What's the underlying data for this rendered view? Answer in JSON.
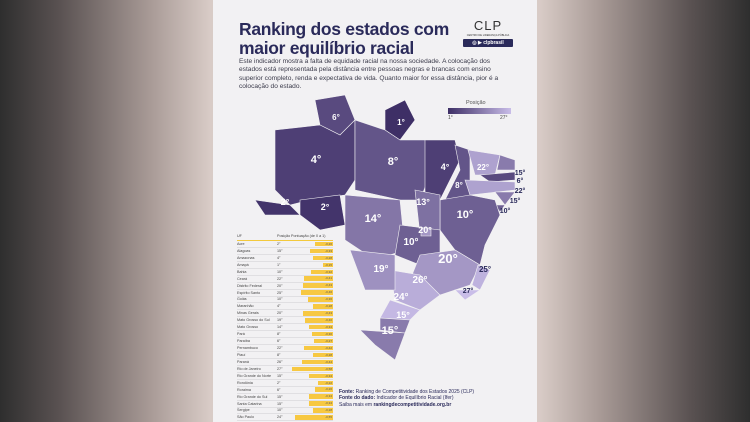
{
  "title": "Ranking dos estados com maior equilíbrio racial",
  "description": "Este indicador mostra a falta de equidade racial na nossa sociedade. A colocação dos estados está representada pela distância entre pessoas negras e brancas com ensino superior completo, renda e expectativa de vida. Quanto maior for essa distância, pior é a colocação do estado.",
  "logo": {
    "name": "CLP",
    "subtitle": "CENTRO DE LIDERANÇA PÚBLICA",
    "social": "clpbrasil"
  },
  "legend": {
    "title": "Posição",
    "min": "1°",
    "max": "27°",
    "color_min": "#3e2f66",
    "color_max": "#c9bde8"
  },
  "table": {
    "headers": [
      "UF",
      "Posição",
      "Pontuação (de 0 a 1)"
    ],
    "bar_color": "#f7c842",
    "rows": [
      {
        "uf": "Acre",
        "pos": "2°",
        "score": "-0,26"
      },
      {
        "uf": "Alagoas",
        "pos": "15°",
        "score": "-0,33"
      },
      {
        "uf": "Amazonas",
        "pos": "4°",
        "score": "-0,28"
      },
      {
        "uf": "Amapá",
        "pos": "1°",
        "score": "-0,15"
      },
      {
        "uf": "Bahia",
        "pos": "10°",
        "score": "-0,32"
      },
      {
        "uf": "Ceará",
        "pos": "22°",
        "score": "-0,41"
      },
      {
        "uf": "Distrito Federal",
        "pos": "20°",
        "score": "-0,43"
      },
      {
        "uf": "Espírito Santo",
        "pos": "25°",
        "score": "-0,46"
      },
      {
        "uf": "Goiás",
        "pos": "10°",
        "score": "-0,36"
      },
      {
        "uf": "Maranhão",
        "pos": "4°",
        "score": "-0,28"
      },
      {
        "uf": "Minas Gerais",
        "pos": "20°",
        "score": "-0,43"
      },
      {
        "uf": "Mato Grosso do Sul",
        "pos": "19°",
        "score": "-0,40"
      },
      {
        "uf": "Mato Grosso",
        "pos": "14°",
        "score": "-0,34"
      },
      {
        "uf": "Pará",
        "pos": "8°",
        "score": "-0,30"
      },
      {
        "uf": "Paraíba",
        "pos": "6°",
        "score": "-0,27"
      },
      {
        "uf": "Pernambuco",
        "pos": "22°",
        "score": "-0,42"
      },
      {
        "uf": "Piauí",
        "pos": "8°",
        "score": "-0,28"
      },
      {
        "uf": "Paraná",
        "pos": "26°",
        "score": "-0,44"
      },
      {
        "uf": "Rio de Janeiro",
        "pos": "27°",
        "score": "-0,58"
      },
      {
        "uf": "Rio Grande do Norte",
        "pos": "15°",
        "score": "-0,34"
      },
      {
        "uf": "Rondônia",
        "pos": "2°",
        "score": "-0,22"
      },
      {
        "uf": "Roraima",
        "pos": "6°",
        "score": "-0,26"
      },
      {
        "uf": "Rio Grande do Sul",
        "pos": "15°",
        "score": "-0,34"
      },
      {
        "uf": "Santa Catarina",
        "pos": "15°",
        "score": "-0,34"
      },
      {
        "uf": "Sergipe",
        "pos": "10°",
        "score": "-0,28"
      },
      {
        "uf": "São Paulo",
        "pos": "24°",
        "score": "-0,55"
      },
      {
        "uf": "Tocantins",
        "pos": "13°",
        "score": "-0,28"
      }
    ]
  },
  "map": {
    "states": [
      {
        "uf": "RR",
        "rank": 6,
        "label": "6°"
      },
      {
        "uf": "AP",
        "rank": 1,
        "label": "1°"
      },
      {
        "uf": "AM",
        "rank": 4,
        "label": "4°"
      },
      {
        "uf": "AC",
        "rank": 2,
        "label": "2°"
      },
      {
        "uf": "RO",
        "rank": 2,
        "label": "2°"
      },
      {
        "uf": "PA",
        "rank": 8,
        "label": "8°"
      },
      {
        "uf": "MT",
        "rank": 14,
        "label": "14°"
      },
      {
        "uf": "MA",
        "rank": 4,
        "label": "4°"
      },
      {
        "uf": "PI",
        "rank": 8,
        "label": "8°"
      },
      {
        "uf": "CE",
        "rank": 22,
        "label": "22°"
      },
      {
        "uf": "RN",
        "rank": 15,
        "label": "15°"
      },
      {
        "uf": "PB",
        "rank": 6,
        "label": "6°"
      },
      {
        "uf": "PE",
        "rank": 22,
        "label": "22°"
      },
      {
        "uf": "AL",
        "rank": 15,
        "label": "15°"
      },
      {
        "uf": "SE",
        "rank": 10,
        "label": "10°"
      },
      {
        "uf": "BA",
        "rank": 10,
        "label": "10°"
      },
      {
        "uf": "TO",
        "rank": 13,
        "label": "13°"
      },
      {
        "uf": "GO",
        "rank": 10,
        "label": "10°"
      },
      {
        "uf": "DF",
        "rank": 20,
        "label": "20°"
      },
      {
        "uf": "MG",
        "rank": 20,
        "label": "20°"
      },
      {
        "uf": "ES",
        "rank": 25,
        "label": "25°"
      },
      {
        "uf": "RJ",
        "rank": 27,
        "label": "27°"
      },
      {
        "uf": "SP",
        "rank": 24,
        "label": "24°"
      },
      {
        "uf": "MS",
        "rank": 19,
        "label": "19°"
      },
      {
        "uf": "PR",
        "rank": 26,
        "label": "26°"
      },
      {
        "uf": "SC",
        "rank": 15,
        "label": "15°"
      },
      {
        "uf": "RS",
        "rank": 15,
        "label": "15°"
      }
    ]
  },
  "source": {
    "line1_label": "Fonte:",
    "line1": "Ranking de Competitividade dos Estados 2025 (CLP)",
    "line2_label": "Fonte do dado:",
    "line2": "Indicador de Equilíbrio Racial (Ifer)",
    "line3": "Saiba mais em",
    "line3_link": "rankingdecompetitividade.org.br"
  }
}
